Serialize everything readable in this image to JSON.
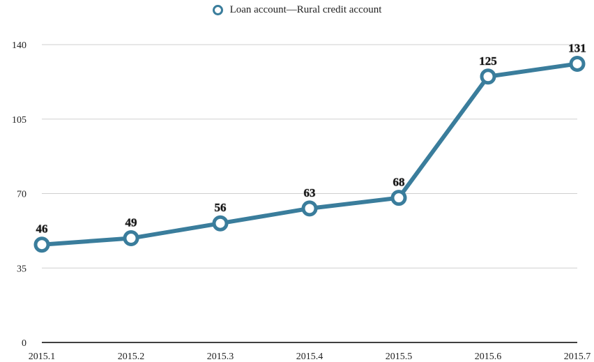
{
  "chart_data": {
    "type": "line",
    "title": "",
    "xlabel": "",
    "ylabel": "",
    "categories": [
      "2015.1",
      "2015.2",
      "2015.3",
      "2015.4",
      "2015.5",
      "2015.6",
      "2015.7"
    ],
    "series": [
      {
        "name": "Loan account—Rural credit account",
        "values": [
          46,
          49,
          56,
          63,
          68,
          125,
          131
        ],
        "color": "#3A7D9C"
      }
    ],
    "ylim": [
      0,
      140
    ],
    "yticks": [
      0,
      35,
      70,
      105,
      140
    ],
    "grid": true,
    "legend": "top-center",
    "data_labels": true
  }
}
